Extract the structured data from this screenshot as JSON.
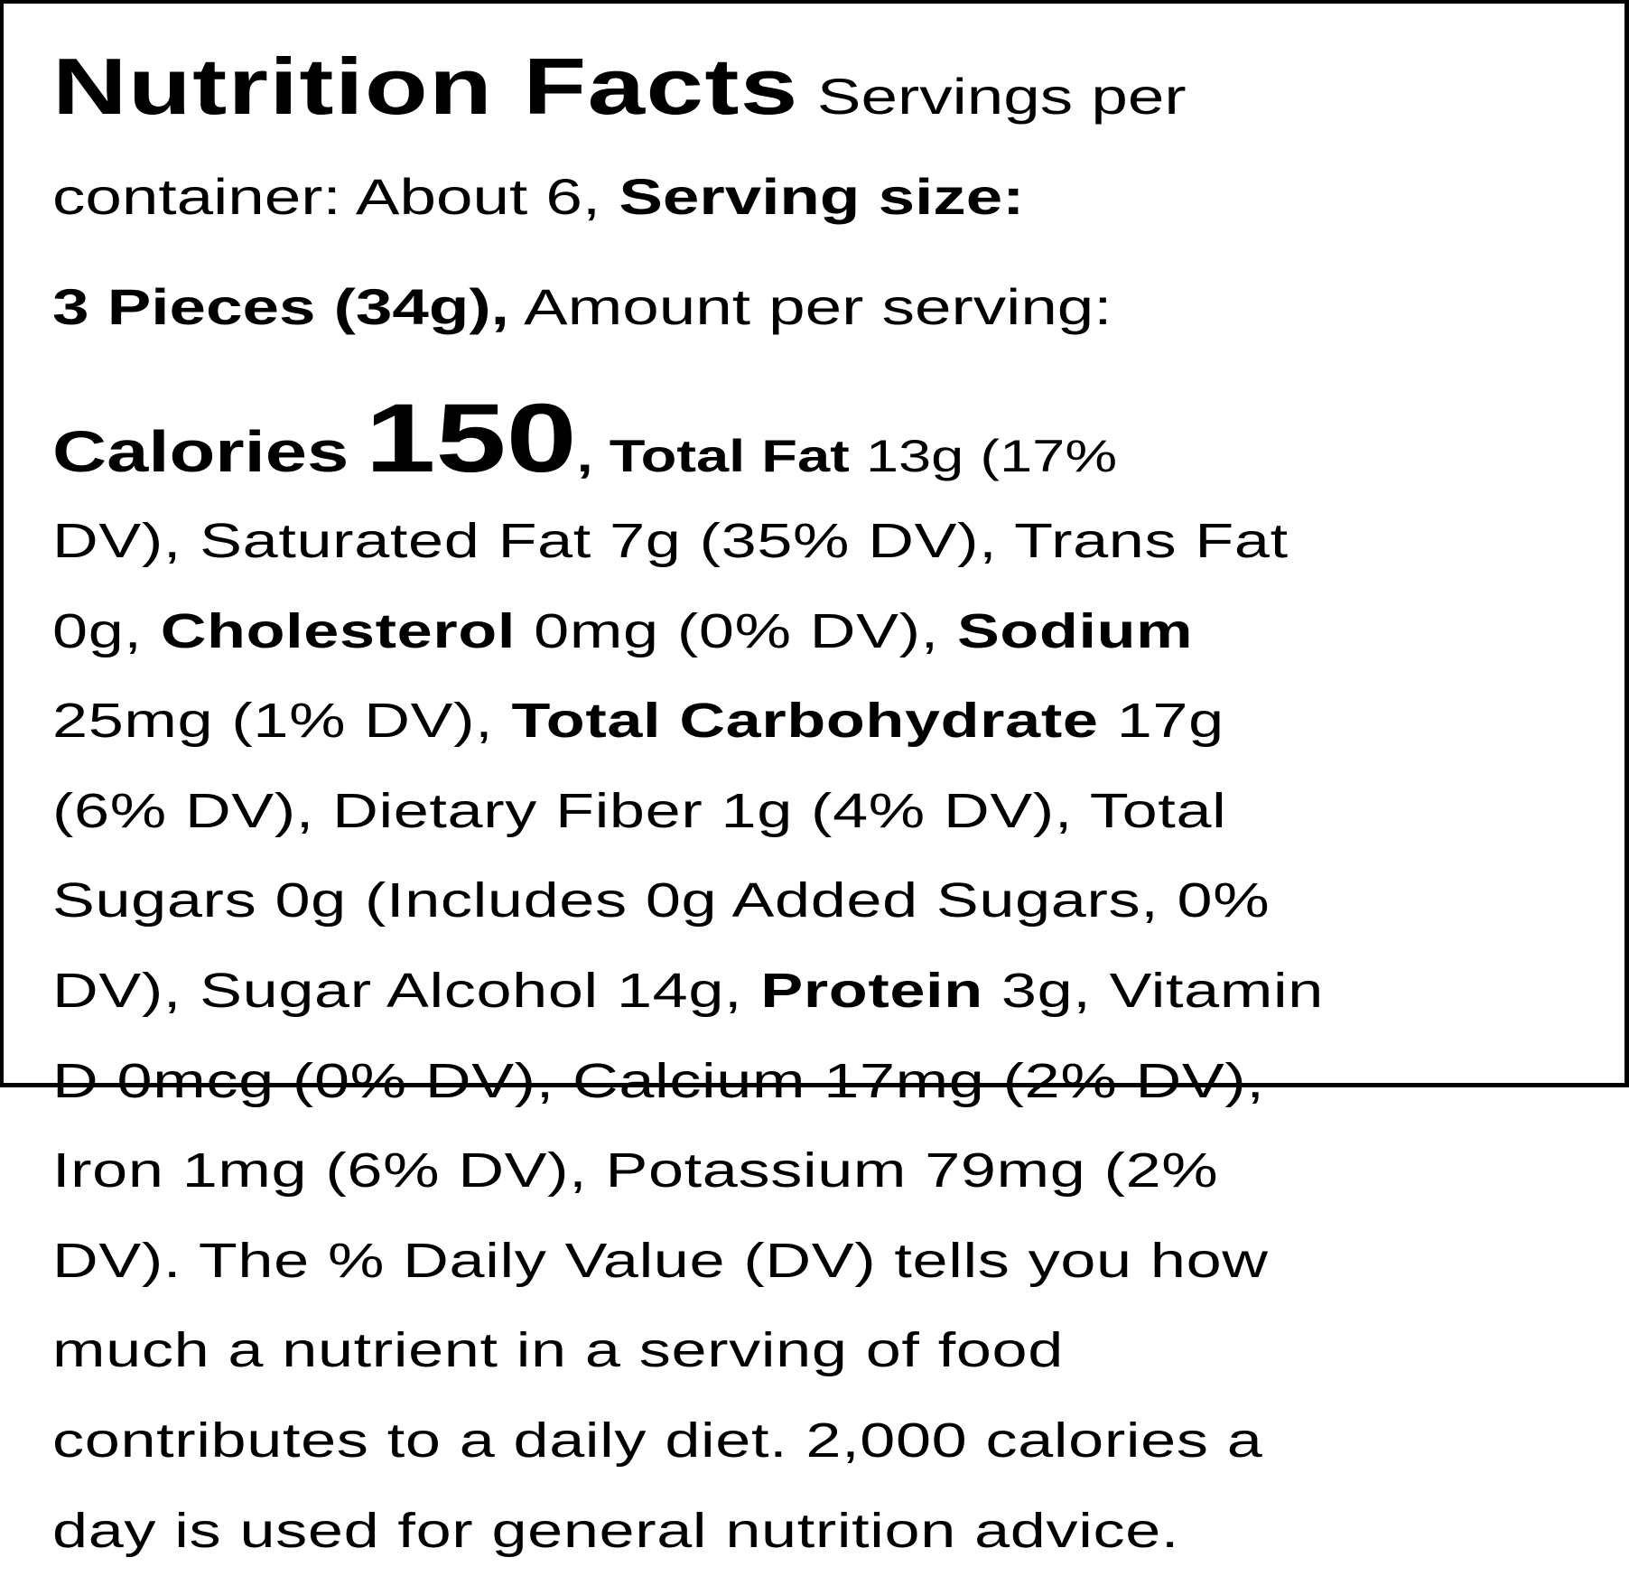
{
  "label": {
    "title": "Nutrition Facts",
    "lines": [
      [
        "Nutrition Facts",
        " Servings per"
      ],
      [
        "container: About 6, ",
        "Serving size:"
      ],
      [
        "3 Pieces (34g),",
        " Amount per serving:"
      ],
      [
        "Calories",
        " ",
        "150",
        ", Total Fat",
        " 13g (17%"
      ],
      [
        "DV), Saturated Fat 7g (35% DV), Trans Fat"
      ],
      [
        "0g, ",
        "Cholesterol",
        " 0mg (0% DV), ",
        "Sodium"
      ],
      [
        "25mg (1% DV), ",
        "Total Carbohydrate",
        " 17g"
      ],
      [
        "(6% DV), Dietary Fiber 1g (4% DV), Total"
      ],
      [
        "Sugars 0g (Includes 0g Added Sugars, 0%"
      ],
      [
        "DV), Sugar Alcohol 14g, ",
        "Protein",
        " 3g, Vitamin"
      ],
      [
        "D 0mcg (0% DV), Calcium 17mg (2% DV),"
      ],
      [
        "Iron 1mg (6% DV), Potassium 79mg (2%"
      ],
      [
        "DV). The % Daily Value (DV) tells you how"
      ],
      [
        "much a nutrient in a serving of food"
      ],
      [
        "contributes to a daily diet. 2,000 calories a"
      ],
      [
        "day is used for general nutrition advice."
      ]
    ]
  }
}
